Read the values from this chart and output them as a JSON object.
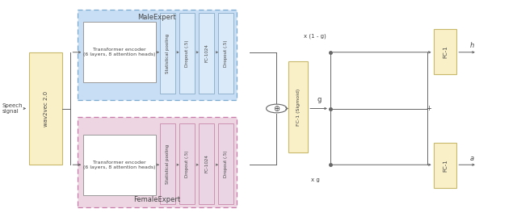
{
  "fig_width": 6.4,
  "fig_height": 2.69,
  "dpi": 100,
  "background_color": "#ffffff",
  "speech_signal_text": "Speech\nsignal",
  "wav2vec_text": "wav2vec 2.0",
  "wav2vec_color": "#faf0c8",
  "wav2vec_edgecolor": "#c8b86a",
  "male_expert_color": "#c8def5",
  "male_expert_border_color": "#7aaad0",
  "male_expert_title": "MaleExpert",
  "female_expert_color": "#edd5e2",
  "female_expert_border_color": "#c87aaa",
  "female_expert_title": "FemaleExpert",
  "transformer_text": "Transformer encoder\n(6 layers, 8 attention heads)",
  "transformer_box_color": "#ffffff",
  "male_block_color": "#daeaf8",
  "male_block_edge": "#88aac8",
  "female_block_color": "#ead5e4",
  "female_block_edge": "#c888aa",
  "block_labels": [
    "Statistical pooling",
    "Dropout (.5)",
    "FC-1024",
    "Dropout (.5)"
  ],
  "fc_sigmoid_color": "#faf0c8",
  "fc_sigmoid_edge": "#c8b86a",
  "fc_sigmoid_text": "FC-1 (Sigmoid)",
  "fc_out_color": "#faf0c8",
  "fc_out_edge": "#c8b86a",
  "fc_h_text": "FC-1",
  "fc_a_text": "FC-1",
  "output_h": "h",
  "output_a": "a",
  "gate_label": "g",
  "multiply_1mg": "x (1 - g)",
  "multiply_g": "x g",
  "line_color": "#666666",
  "text_color": "#444444"
}
